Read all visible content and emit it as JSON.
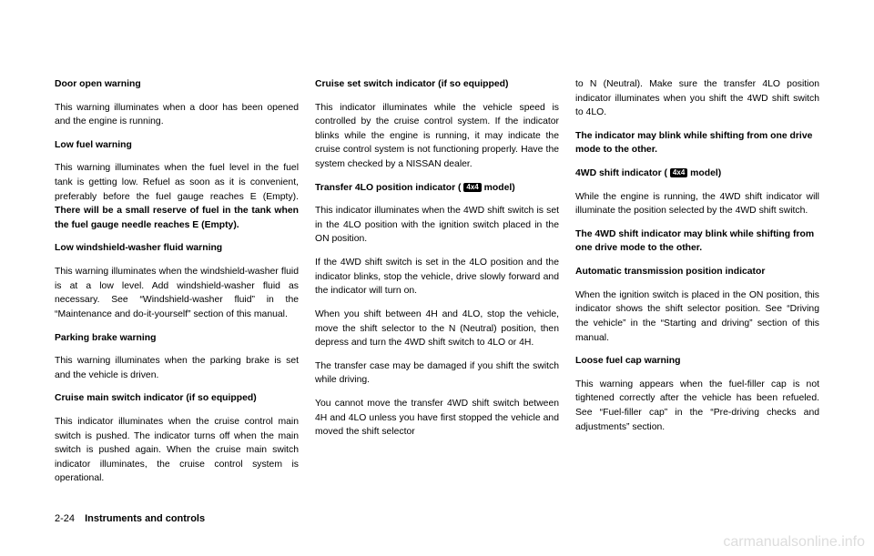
{
  "col1": {
    "h1": "Door open warning",
    "p1": "This warning illuminates when a door has been opened and the engine is running.",
    "h2": "Low fuel warning",
    "p2a": "This warning illuminates when the fuel level in the fuel tank is getting low. Refuel as soon as it is convenient, preferably before the fuel gauge reaches E (Empty). ",
    "p2b": "There will be a small reserve of fuel in the tank when the fuel gauge needle reaches E (Empty).",
    "h3": "Low windshield-washer fluid warning",
    "p3": "This warning illuminates when the windshield-washer fluid is at a low level. Add windshield-washer fluid as necessary. See “Windshield-washer fluid” in the “Maintenance and do-it-yourself” section of this manual.",
    "h4": "Parking brake warning",
    "p4": "This warning illuminates when the parking brake is set and the vehicle is driven.",
    "h5": "Cruise main switch indicator (if so equipped)",
    "p5": "This indicator illuminates when the cruise control main switch is pushed. The indicator turns off when the main switch is pushed again. When the cruise main switch indicator illuminates, the cruise control system is operational."
  },
  "col2": {
    "h1": "Cruise set switch indicator (if so equipped)",
    "p1": "This indicator illuminates while the vehicle speed is controlled by the cruise control system. If the indicator blinks while the engine is running, it may indicate the cruise control system is not functioning properly. Have the system checked by a NISSAN dealer.",
    "h2a": "Transfer 4LO position indicator ( ",
    "h2b": " model)",
    "icon": "4x4",
    "p2": "This indicator illuminates when the 4WD shift switch is set in the 4LO position with the ignition switch placed in the ON position.",
    "p3": "If the 4WD shift switch is set in the 4LO position and the indicator blinks, stop the vehicle, drive slowly forward and the indicator will turn on.",
    "p4": "When you shift between 4H and 4LO, stop the vehicle, move the shift selector to the N (Neutral) position, then depress and turn the 4WD shift switch to 4LO or 4H.",
    "p5": "The transfer case may be damaged if you shift the switch while driving.",
    "p6": "You cannot move the transfer 4WD shift switch between 4H and 4LO unless you have first stopped the vehicle and moved the shift selector"
  },
  "col3": {
    "p1": "to N (Neutral). Make sure the transfer 4LO position indicator illuminates when you shift the 4WD shift switch to 4LO.",
    "p2": "The indicator may blink while shifting from one drive mode to the other.",
    "h1a": "4WD shift indicator ( ",
    "h1b": " model)",
    "icon": "4x4",
    "p3": "While the engine is running, the 4WD shift indicator will illuminate the position selected by the 4WD shift switch.",
    "p4": "The 4WD shift indicator may blink while shifting from one drive mode to the other.",
    "h2": "Automatic transmission position indicator",
    "p5": "When the ignition switch is placed in the ON position, this indicator shows the shift selector position. See “Driving the vehicle” in the “Starting and driving” section of this manual.",
    "h3": "Loose fuel cap warning",
    "p6": "This warning appears when the fuel-filler cap is not tightened correctly after the vehicle has been refueled. See “Fuel-filler cap” in the “Pre-driving checks and adjustments” section."
  },
  "footer": {
    "page": "2-24",
    "section": "Instruments and controls"
  },
  "watermark": "carmanualsonline.info"
}
